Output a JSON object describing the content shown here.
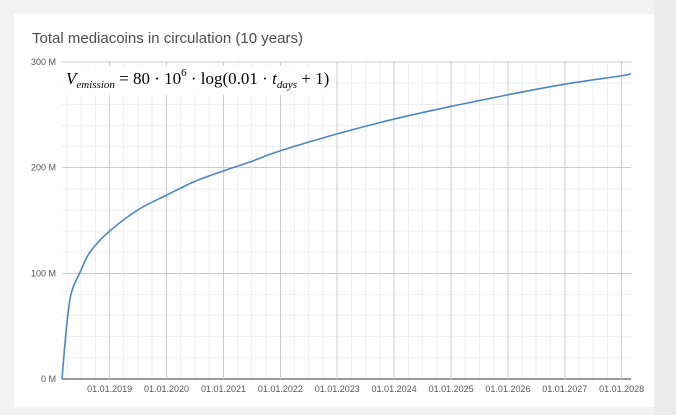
{
  "chart_data": {
    "type": "line",
    "title": "Total mediacoins in circulation (10 years)",
    "formula": {
      "lhs_var": "V",
      "lhs_sub": "emission",
      "eq_part1": "= 80 · 10",
      "exp": "6",
      "eq_part2": " · log(0.01 · ",
      "t_var": "t",
      "t_sub": "days",
      "eq_part3": " + 1)"
    },
    "xlabel": "",
    "ylabel": "",
    "x_axis_type": "date",
    "x_range": [
      "2018-03-01",
      "2028-03-01"
    ],
    "ylim": [
      0,
      300000000
    ],
    "y_ticks": [
      {
        "value": 0,
        "label": "0 M"
      },
      {
        "value": 100000000,
        "label": "100 M"
      },
      {
        "value": 200000000,
        "label": "200 M"
      },
      {
        "value": 300000000,
        "label": "300 M"
      }
    ],
    "x_ticks": [
      {
        "date": "2019-01-01",
        "label": "01.01.2019"
      },
      {
        "date": "2020-01-01",
        "label": "01.01.2020"
      },
      {
        "date": "2021-01-01",
        "label": "01.01.2021"
      },
      {
        "date": "2022-01-01",
        "label": "01.01.2022"
      },
      {
        "date": "2023-01-01",
        "label": "01.01.2023"
      },
      {
        "date": "2024-01-01",
        "label": "01.01.2024"
      },
      {
        "date": "2025-01-01",
        "label": "01.01.2025"
      },
      {
        "date": "2026-01-01",
        "label": "01.01.2026"
      },
      {
        "date": "2027-01-01",
        "label": "01.01.2027"
      },
      {
        "date": "2028-01-01",
        "label": "01.01.2028"
      }
    ],
    "grid": true,
    "legend": "none",
    "series": [
      {
        "color": "#4a86c8",
        "points": [
          {
            "x": "2018-03-01",
            "y": 0
          },
          {
            "x": "2018-04-01",
            "y": 52000000
          },
          {
            "x": "2018-05-01",
            "y": 82000000
          },
          {
            "x": "2018-07-01",
            "y": 103000000
          },
          {
            "x": "2018-09-01",
            "y": 121000000
          },
          {
            "x": "2019-01-01",
            "y": 140000000
          },
          {
            "x": "2019-07-01",
            "y": 160000000
          },
          {
            "x": "2020-01-01",
            "y": 174000000
          },
          {
            "x": "2020-07-01",
            "y": 187000000
          },
          {
            "x": "2021-01-01",
            "y": 197000000
          },
          {
            "x": "2021-07-01",
            "y": 206000000
          },
          {
            "x": "2022-01-01",
            "y": 216000000
          },
          {
            "x": "2023-01-01",
            "y": 232000000
          },
          {
            "x": "2024-01-01",
            "y": 246000000
          },
          {
            "x": "2025-01-01",
            "y": 258000000
          },
          {
            "x": "2026-01-01",
            "y": 269000000
          },
          {
            "x": "2027-01-01",
            "y": 279000000
          },
          {
            "x": "2028-01-01",
            "y": 287000000
          },
          {
            "x": "2028-03-01",
            "y": 289000000
          }
        ]
      }
    ]
  }
}
